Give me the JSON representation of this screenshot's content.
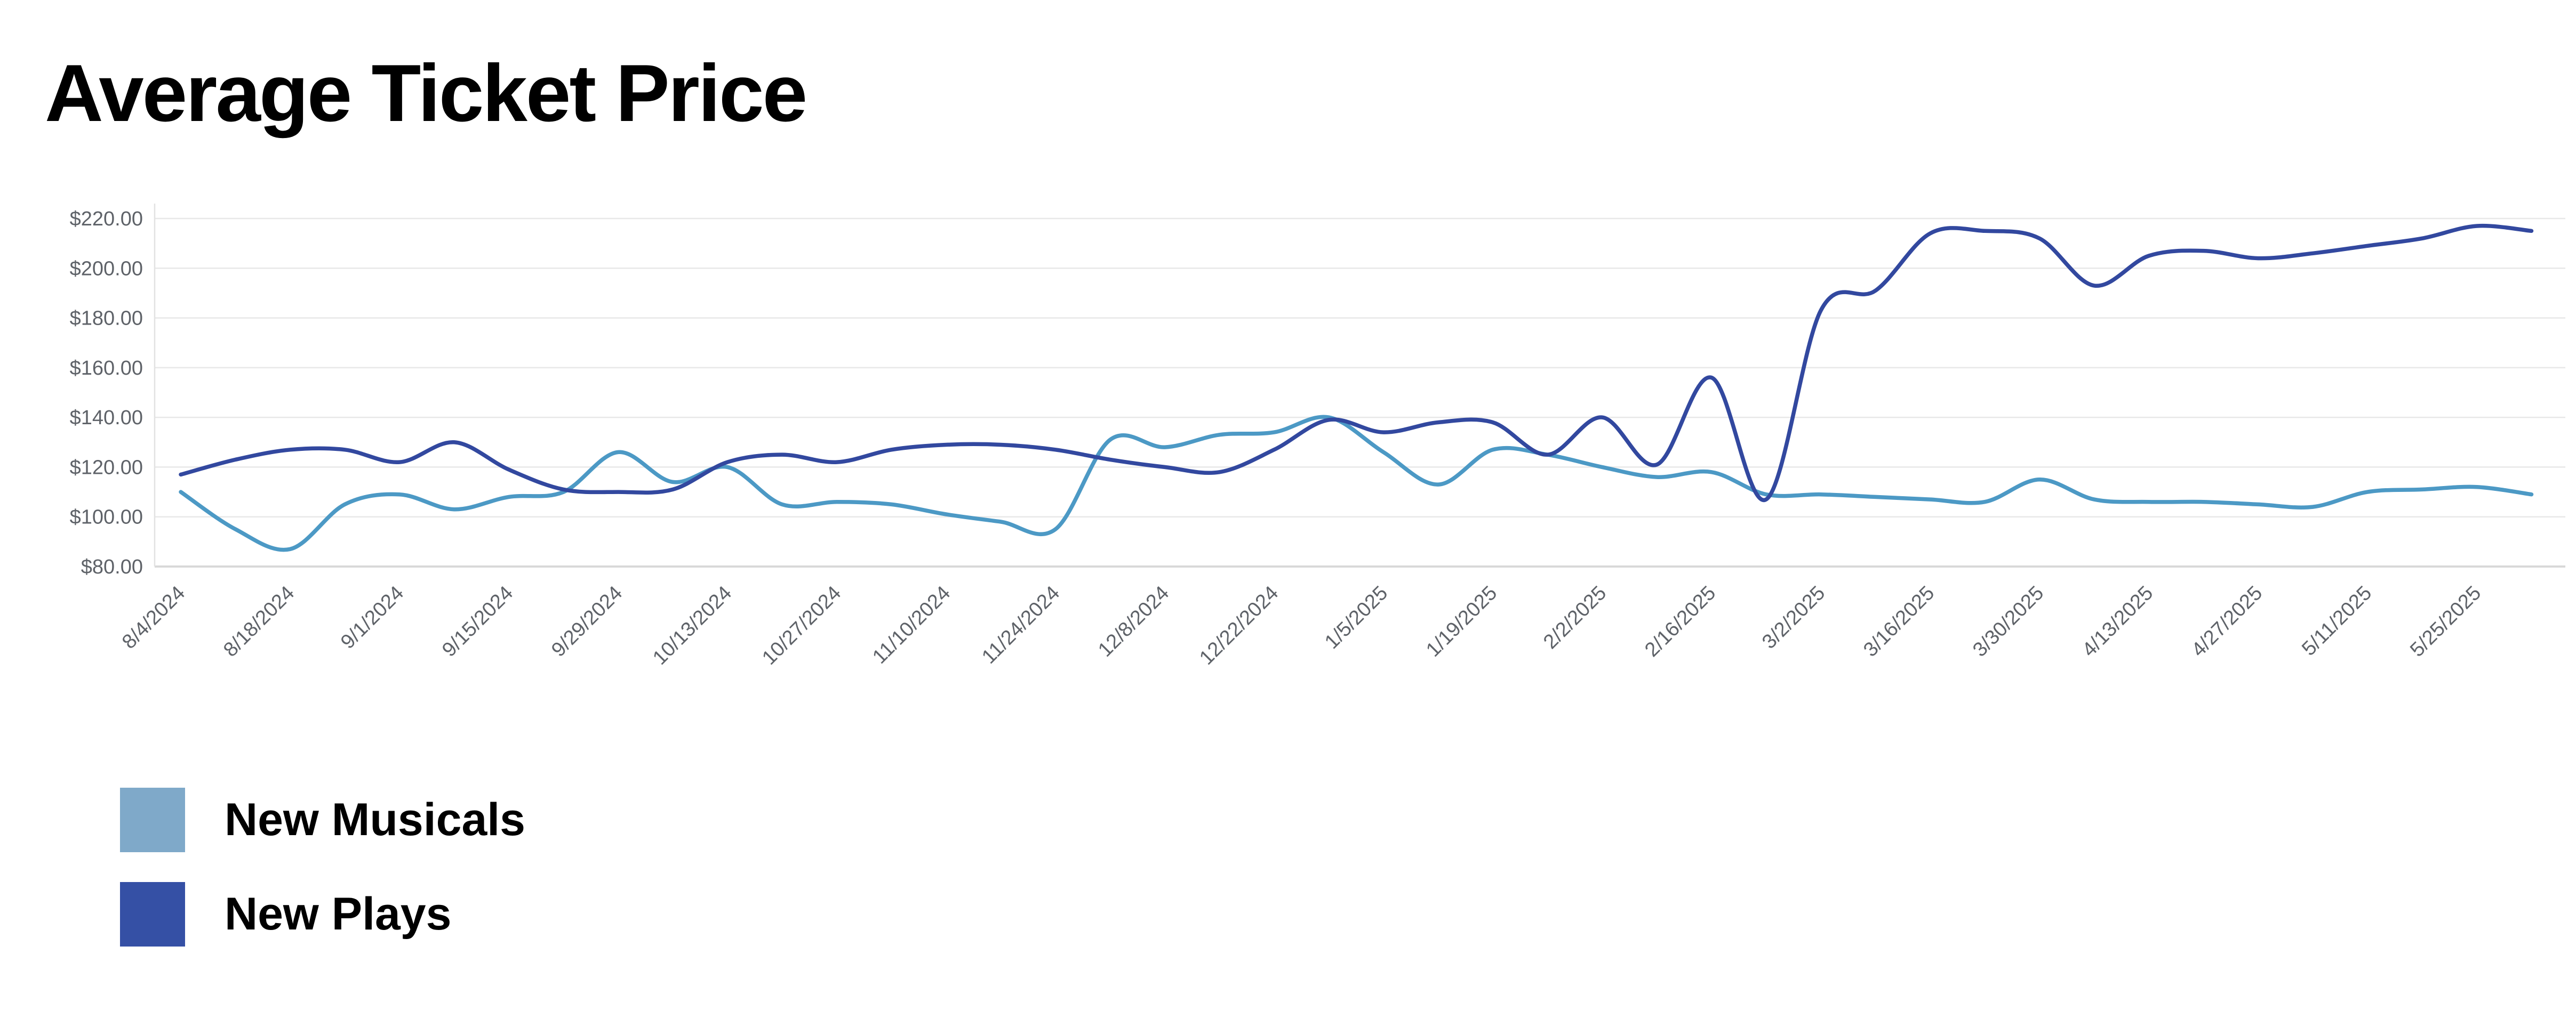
{
  "title": "Average Ticket Price",
  "legend": {
    "items": [
      {
        "label": "New Musicals",
        "swatch_color": "#7FA9C9"
      },
      {
        "label": "New Plays",
        "swatch_color": "#3550A5"
      }
    ]
  },
  "chart_data": {
    "type": "line",
    "title": "Average Ticket Price",
    "xlabel": "",
    "ylabel": "",
    "ylim": [
      80,
      220
    ],
    "y_tick_step": 20,
    "y_ticks": [
      "$220.00",
      "$200.00",
      "$180.00",
      "$160.00",
      "$140.00",
      "$120.00",
      "$100.00",
      "$80.00"
    ],
    "grid": true,
    "legend_position": "bottom-left",
    "x_label_every": 2,
    "x": [
      "8/4/2024",
      "8/11/2024",
      "8/18/2024",
      "8/25/2024",
      "9/1/2024",
      "9/8/2024",
      "9/15/2024",
      "9/22/2024",
      "9/29/2024",
      "10/6/2024",
      "10/13/2024",
      "10/20/2024",
      "10/27/2024",
      "11/3/2024",
      "11/10/2024",
      "11/17/2024",
      "11/24/2024",
      "12/1/2024",
      "12/8/2024",
      "12/15/2024",
      "12/22/2024",
      "12/29/2024",
      "1/5/2025",
      "1/12/2025",
      "1/19/2025",
      "1/26/2025",
      "2/2/2025",
      "2/9/2025",
      "2/16/2025",
      "2/23/2025",
      "3/2/2025",
      "3/9/2025",
      "3/16/2025",
      "3/23/2025",
      "3/30/2025",
      "4/6/2025",
      "4/13/2025",
      "4/20/2025",
      "4/27/2025",
      "5/4/2025",
      "5/11/2025",
      "5/18/2025",
      "5/25/2025",
      "6/1/2025"
    ],
    "x_axis_labels": [
      "8/4/2024",
      "8/18/2024",
      "9/1/2024",
      "9/15/2024",
      "9/29/2024",
      "10/13/2024",
      "10/27/2024",
      "11/10/2024",
      "11/24/2024",
      "12/8/2024",
      "12/22/2024",
      "1/5/2025",
      "1/19/2025",
      "2/2/2025",
      "2/16/2025",
      "3/2/2025",
      "3/16/2025",
      "3/30/2025",
      "4/13/2025",
      "4/27/2025",
      "5/11/2025",
      "5/25/2025"
    ],
    "series": [
      {
        "name": "New Musicals",
        "color": "#7FA9C9",
        "line_color": "#4C99C5",
        "values": [
          110,
          95,
          87,
          105,
          109,
          103,
          108,
          110,
          126,
          114,
          120,
          105,
          106,
          105,
          101,
          98,
          95,
          131,
          128,
          133,
          134,
          140,
          126,
          113,
          127,
          125,
          120,
          116,
          118,
          109,
          109,
          108,
          107,
          106,
          115,
          107,
          106,
          106,
          105,
          104,
          110,
          111,
          112,
          109
        ]
      },
      {
        "name": "New Plays",
        "color": "#3550A5",
        "line_color": "#32489F",
        "values": [
          117,
          123,
          127,
          127,
          122,
          130,
          119,
          111,
          110,
          111,
          122,
          125,
          122,
          127,
          129,
          129,
          127,
          123,
          120,
          118,
          127,
          139,
          134,
          138,
          138,
          125,
          140,
          121,
          156,
          107,
          183,
          191,
          214,
          215,
          212,
          193,
          205,
          207,
          204,
          206,
          209,
          212,
          217,
          215
        ]
      }
    ],
    "style": {
      "gridline_color": "#E8E8E8",
      "axis_line_color": "#D8D8D8",
      "left_axis_color": "#E2E2E2",
      "tick_text_color": "#5E6268",
      "background": "#FFFFFF"
    }
  }
}
